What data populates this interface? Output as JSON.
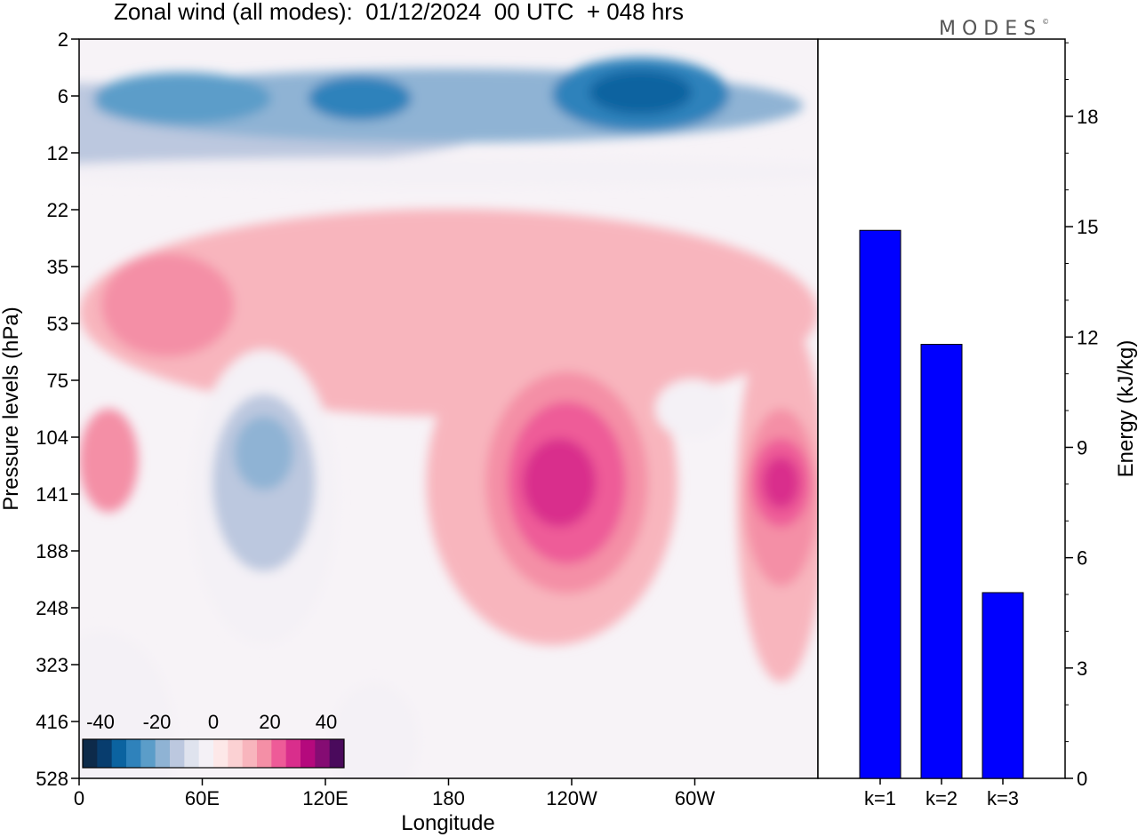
{
  "title": "Zonal wind (all modes):  01/12/2024  00 UTC  + 048 hrs",
  "logo": "MODES",
  "chart_data": [
    {
      "type": "heatmap",
      "title": "Zonal wind (all modes):  01/12/2024  00 UTC  + 048 hrs",
      "xlabel": "Longitude",
      "ylabel": "Pressure levels (hPa)",
      "x_ticks": [
        "0",
        "60E",
        "120E",
        "180",
        "120W",
        "60W"
      ],
      "y_ticks": [
        "2",
        "6",
        "12",
        "22",
        "35",
        "53",
        "75",
        "104",
        "141",
        "188",
        "248",
        "323",
        "416",
        "528"
      ],
      "colorbar_labels": [
        "-40",
        "-20",
        "0",
        "20",
        "40"
      ],
      "colorbar_colors": [
        "#0d2a4a",
        "#083d6e",
        "#0b63a0",
        "#2f82bb",
        "#5b9dc9",
        "#8fb3d4",
        "#bcc8df",
        "#dfe3ee",
        "#f4f1f6",
        "#fde8e8",
        "#fbd1d3",
        "#f8b5bd",
        "#f48fa6",
        "#ee5b98",
        "#d92e8c",
        "#b5097d",
        "#850c73",
        "#4a0a5c"
      ],
      "features": [
        {
          "lon": 0,
          "lat": 0.12,
          "rx": 0.56,
          "ry": 0.06,
          "value": -14
        },
        {
          "lon": 0.5,
          "lat": 0.09,
          "rx": 0.48,
          "ry": 0.05,
          "value": -20
        },
        {
          "lon": 0.14,
          "lat": 0.08,
          "rx": 0.12,
          "ry": 0.035,
          "value": -26
        },
        {
          "lon": 0.38,
          "lat": 0.08,
          "rx": 0.07,
          "ry": 0.03,
          "value": -30
        },
        {
          "lon": 0.76,
          "lat": 0.075,
          "rx": 0.12,
          "ry": 0.05,
          "value": -30
        },
        {
          "lon": 0.76,
          "lat": 0.072,
          "rx": 0.07,
          "ry": 0.03,
          "value": -36
        },
        {
          "lon": 0.5,
          "lat": 0.18,
          "rx": 0.6,
          "ry": 0.02,
          "value": -4
        },
        {
          "lon": 0.5,
          "lat": 0.37,
          "rx": 0.5,
          "ry": 0.14,
          "value": 8
        },
        {
          "lon": 0.12,
          "lat": 0.36,
          "rx": 0.09,
          "ry": 0.07,
          "value": 14
        },
        {
          "lon": 0.04,
          "lat": 0.57,
          "rx": 0.04,
          "ry": 0.07,
          "value": 14
        },
        {
          "lon": 0.25,
          "lat": 0.62,
          "rx": 0.1,
          "ry": 0.2,
          "value": -6
        },
        {
          "lon": 0.25,
          "lat": 0.6,
          "rx": 0.07,
          "ry": 0.12,
          "value": -14
        },
        {
          "lon": 0.25,
          "lat": 0.56,
          "rx": 0.04,
          "ry": 0.05,
          "value": -22
        },
        {
          "lon": 0.64,
          "lat": 0.6,
          "rx": 0.17,
          "ry": 0.22,
          "value": 8
        },
        {
          "lon": 0.66,
          "lat": 0.6,
          "rx": 0.11,
          "ry": 0.15,
          "value": 14
        },
        {
          "lon": 0.66,
          "lat": 0.6,
          "rx": 0.08,
          "ry": 0.11,
          "value": 20
        },
        {
          "lon": 0.65,
          "lat": 0.6,
          "rx": 0.05,
          "ry": 0.06,
          "value": 26
        },
        {
          "lon": 0.83,
          "lat": 0.5,
          "rx": 0.05,
          "ry": 0.04,
          "value": -6
        },
        {
          "lon": 0.95,
          "lat": 0.62,
          "rx": 0.06,
          "ry": 0.25,
          "value": 8
        },
        {
          "lon": 0.95,
          "lat": 0.62,
          "rx": 0.05,
          "ry": 0.12,
          "value": 14
        },
        {
          "lon": 0.95,
          "lat": 0.6,
          "rx": 0.04,
          "ry": 0.06,
          "value": 20
        },
        {
          "lon": 0.95,
          "lat": 0.6,
          "rx": 0.025,
          "ry": 0.035,
          "value": 26
        },
        {
          "lon": 0.03,
          "lat": 0.95,
          "rx": 0.1,
          "ry": 0.15,
          "value": -4
        },
        {
          "lon": 0.4,
          "lat": 0.95,
          "rx": 0.06,
          "ry": 0.08,
          "value": -4
        }
      ]
    },
    {
      "type": "bar",
      "categories": [
        "k=1",
        "k=2",
        "k=3"
      ],
      "values": [
        14.9,
        11.8,
        5.05
      ],
      "ylabel": "Energy (kJ/kg)",
      "y_ticks": [
        "0",
        "3",
        "6",
        "9",
        "12",
        "15",
        "18"
      ],
      "ylim": [
        0,
        20.1
      ],
      "bar_color": "#0000ff"
    }
  ]
}
